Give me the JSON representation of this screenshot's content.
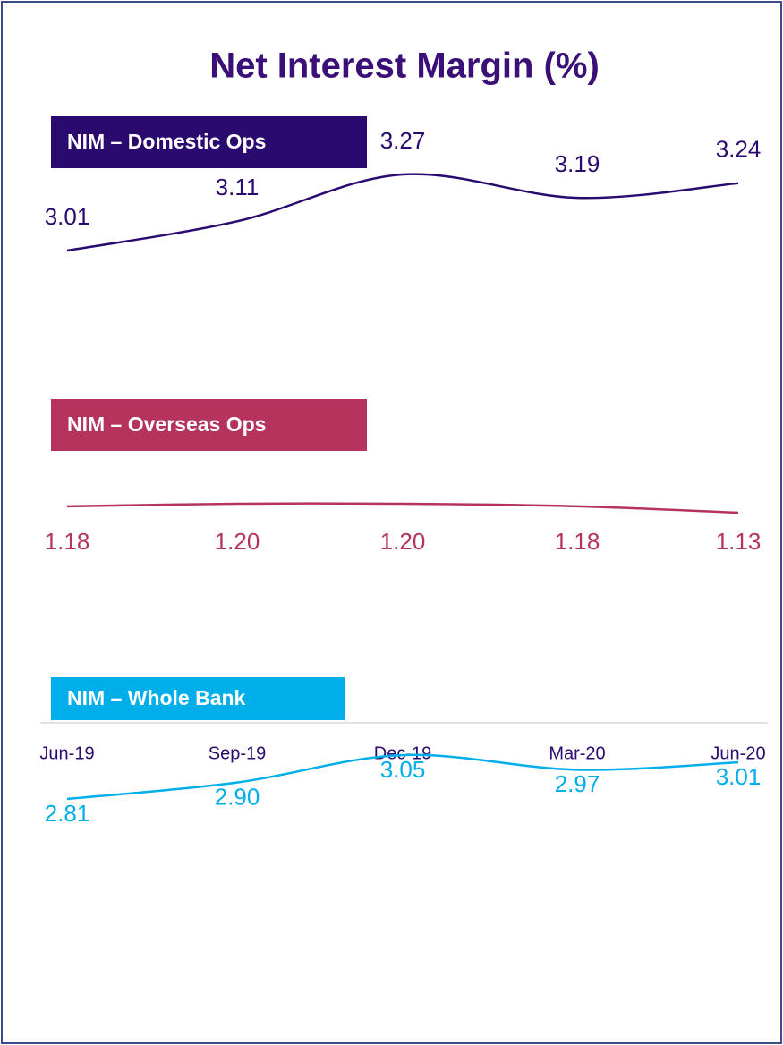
{
  "chart_data": {
    "type": "line",
    "title": "Net Interest Margin (%)",
    "categories": [
      "Jun-19",
      "Sep-19",
      "Dec-19",
      "Mar-20",
      "Jun-20"
    ],
    "series": [
      {
        "name": "NIM – Domestic Ops",
        "color": "#2b0a70",
        "values": [
          3.01,
          3.11,
          3.27,
          3.19,
          3.24
        ],
        "value_labels": [
          "3.01",
          "3.11",
          "3.27",
          "3.19",
          "3.24"
        ]
      },
      {
        "name": "NIM – Overseas Ops",
        "color": "#b5335c",
        "values": [
          1.18,
          1.2,
          1.2,
          1.18,
          1.13
        ],
        "value_labels": [
          "1.18",
          "1.20",
          "1.20",
          "1.18",
          "1.13"
        ]
      },
      {
        "name": "NIM – Whole Bank",
        "color": "#00aeea",
        "values": [
          2.81,
          2.9,
          3.05,
          2.97,
          3.01
        ],
        "value_labels": [
          "2.81",
          "2.90",
          "3.05",
          "2.97",
          "3.01"
        ]
      }
    ]
  }
}
